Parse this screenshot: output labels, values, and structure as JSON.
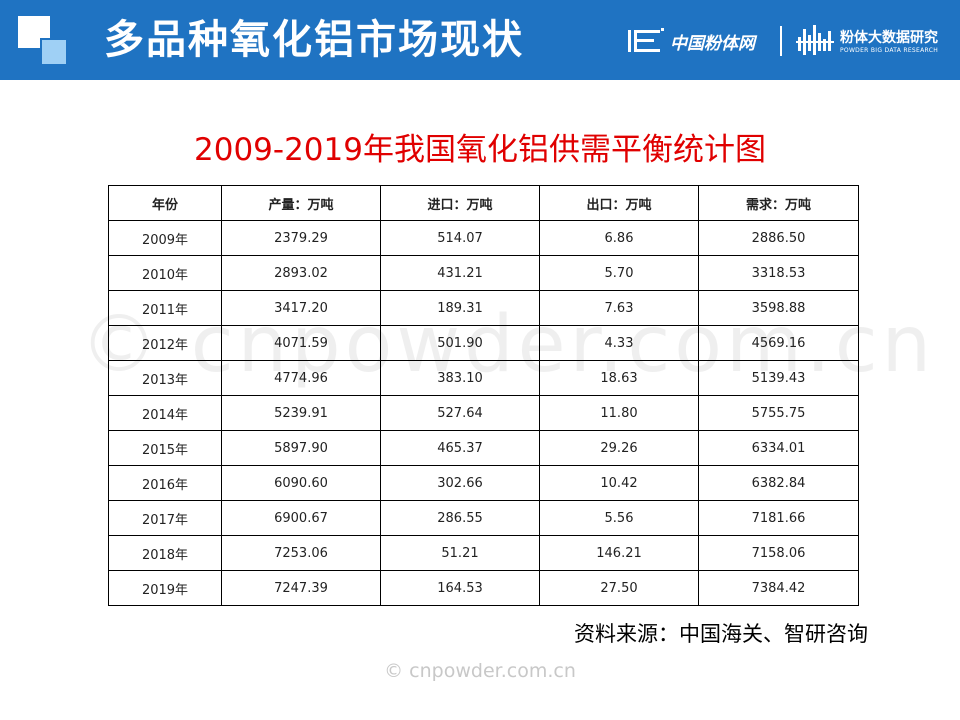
{
  "header": {
    "title": "多品种氧化铝市场现状",
    "brand_primary": "中国粉体网",
    "brand_secondary_cn": "粉体大数据研究",
    "brand_secondary_en": "POWDER BIG DATA RESEARCH",
    "bg_color": "#1f73c2"
  },
  "subtitle": "2009-2019年我国氧化铝供需平衡统计图",
  "table": {
    "headers": [
      "年份",
      "产量：万吨",
      "进口：万吨",
      "出口：万吨",
      "需求：万吨"
    ],
    "rows": [
      [
        "2009年",
        "2379.29",
        "514.07",
        "6.86",
        "2886.50"
      ],
      [
        "2010年",
        "2893.02",
        "431.21",
        "5.70",
        "3318.53"
      ],
      [
        "2011年",
        "3417.20",
        "189.31",
        "7.63",
        "3598.88"
      ],
      [
        "2012年",
        "4071.59",
        "501.90",
        "4.33",
        "4569.16"
      ],
      [
        "2013年",
        "4774.96",
        "383.10",
        "18.63",
        "5139.43"
      ],
      [
        "2014年",
        "5239.91",
        "527.64",
        "11.80",
        "5755.75"
      ],
      [
        "2015年",
        "5897.90",
        "465.37",
        "29.26",
        "6334.01"
      ],
      [
        "2016年",
        "6090.60",
        "302.66",
        "10.42",
        "6382.84"
      ],
      [
        "2017年",
        "6900.67",
        "286.55",
        "5.56",
        "7181.66"
      ],
      [
        "2018年",
        "7253.06",
        "51.21",
        "146.21",
        "7158.06"
      ],
      [
        "2019年",
        "7247.39",
        "164.53",
        "27.50",
        "7384.42"
      ]
    ]
  },
  "watermark": "© cnpowder.com.cn",
  "source": "资料来源：中国海关、智研咨询",
  "footer_watermark": "© cnpowder.com.cn"
}
